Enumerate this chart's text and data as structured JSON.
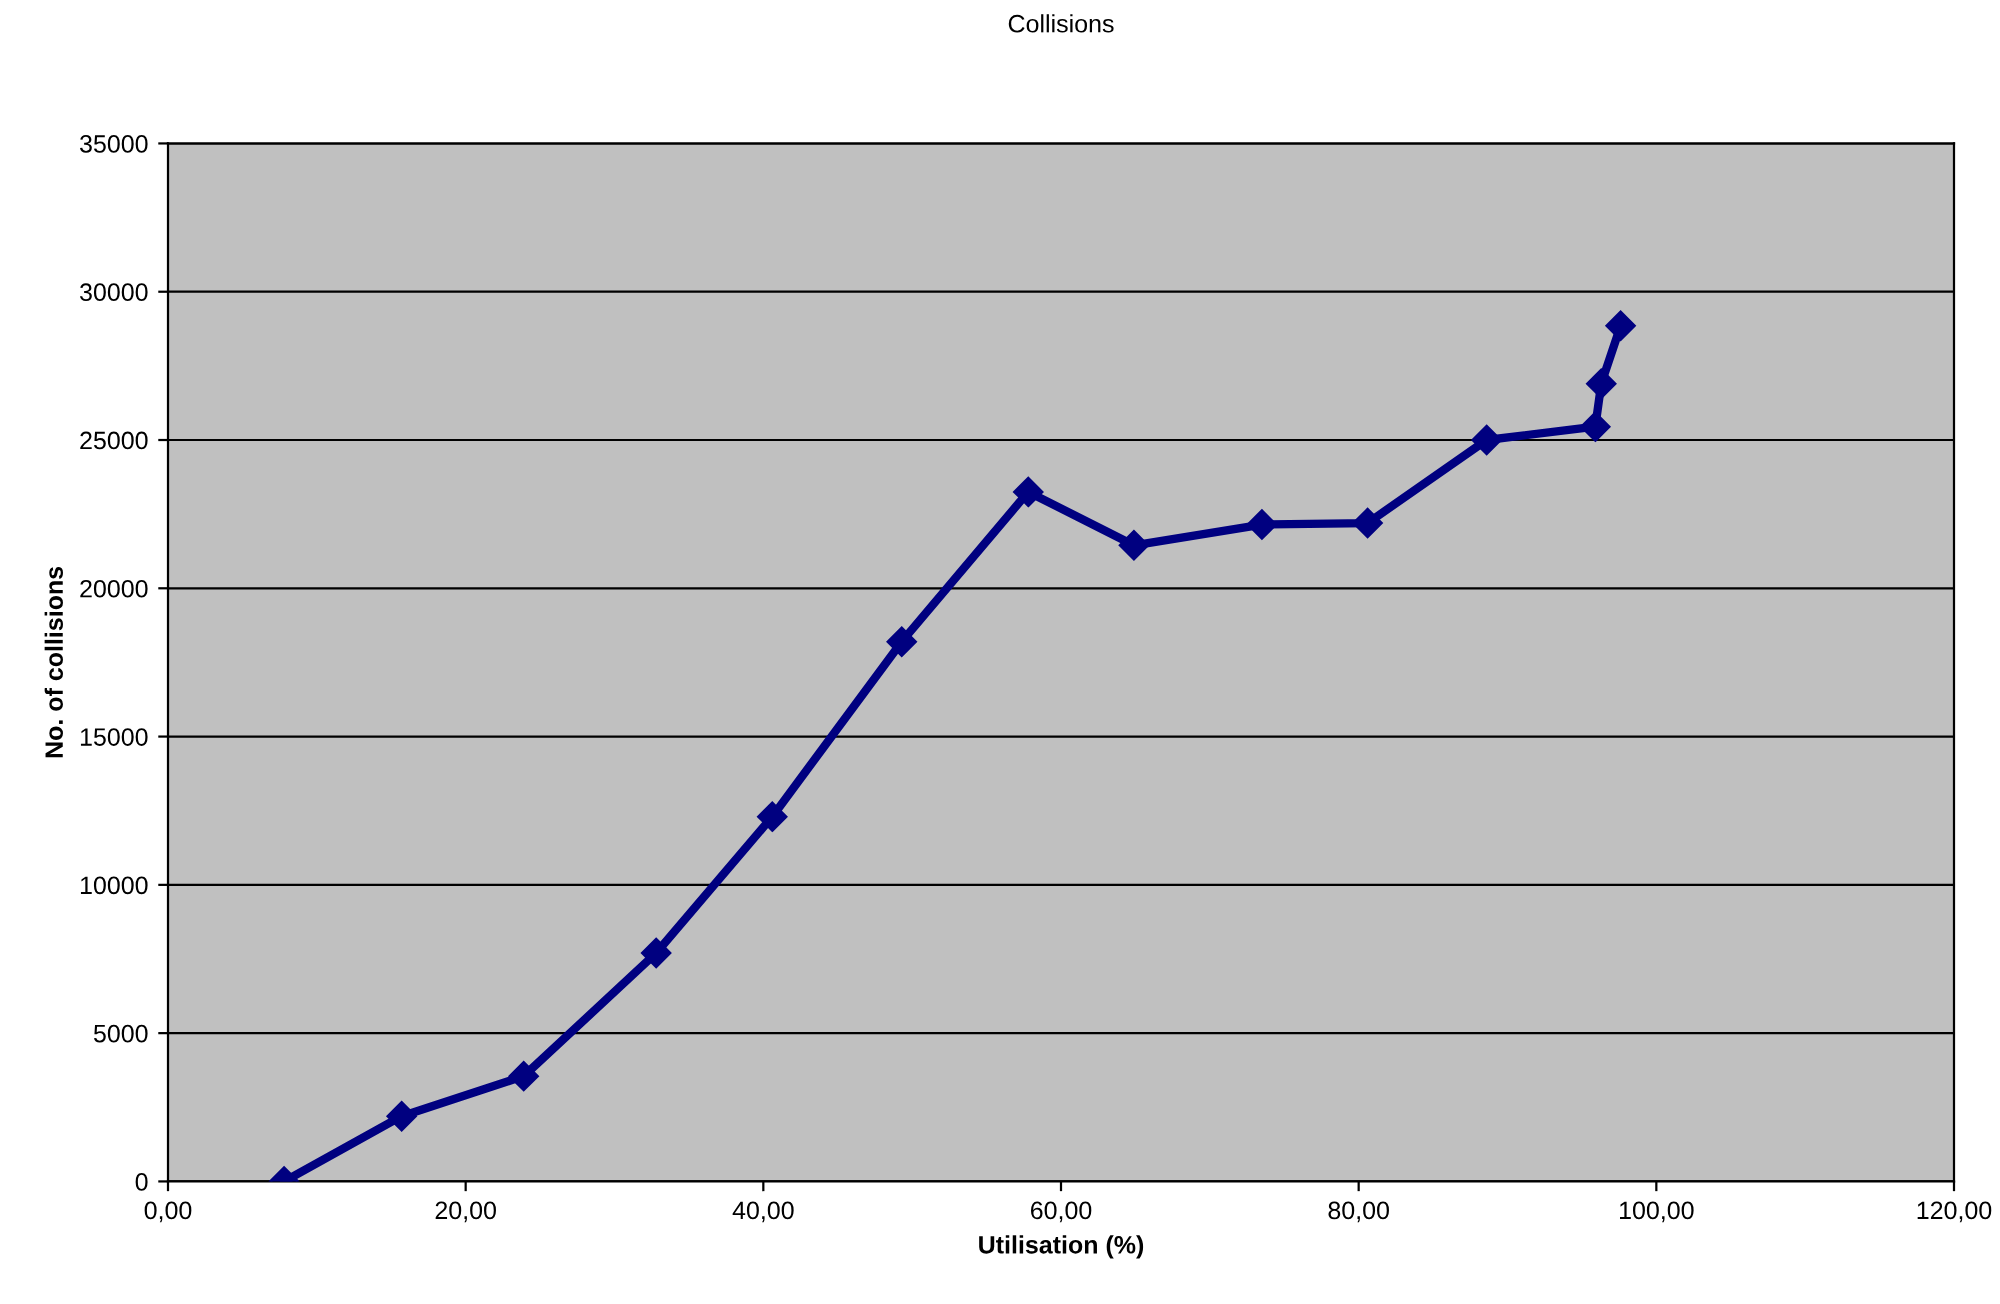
{
  "chart_data": {
    "type": "line",
    "title": "Collisions",
    "xlabel": "Utilisation (%)",
    "ylabel": "No. of collisions",
    "x": [
      7.8,
      15.7,
      23.9,
      32.8,
      40.6,
      49.3,
      57.8,
      64.9,
      73.5,
      80.6,
      88.6,
      95.9,
      96.3,
      97.6
    ],
    "series": [
      {
        "color": "#000080",
        "values": [
          0,
          2200,
          3550,
          7700,
          12300,
          18200,
          23250,
          21450,
          22150,
          22200,
          25000,
          25450,
          26900,
          28850
        ]
      }
    ],
    "xlim": [
      0,
      120
    ],
    "xticks": [
      {
        "value": 0,
        "label": "0,00"
      },
      {
        "value": 20,
        "label": "20,00"
      },
      {
        "value": 40,
        "label": "40,00"
      },
      {
        "value": 60,
        "label": "60,00"
      },
      {
        "value": 80,
        "label": "80,00"
      },
      {
        "value": 100,
        "label": "100,00"
      },
      {
        "value": 120,
        "label": "120,00"
      }
    ],
    "ylim": [
      0,
      35000
    ],
    "yticks": [
      0,
      5000,
      10000,
      15000,
      20000,
      25000,
      30000,
      35000
    ],
    "grid": "y",
    "legend": false,
    "marker": "diamond",
    "line_style": "solid"
  }
}
